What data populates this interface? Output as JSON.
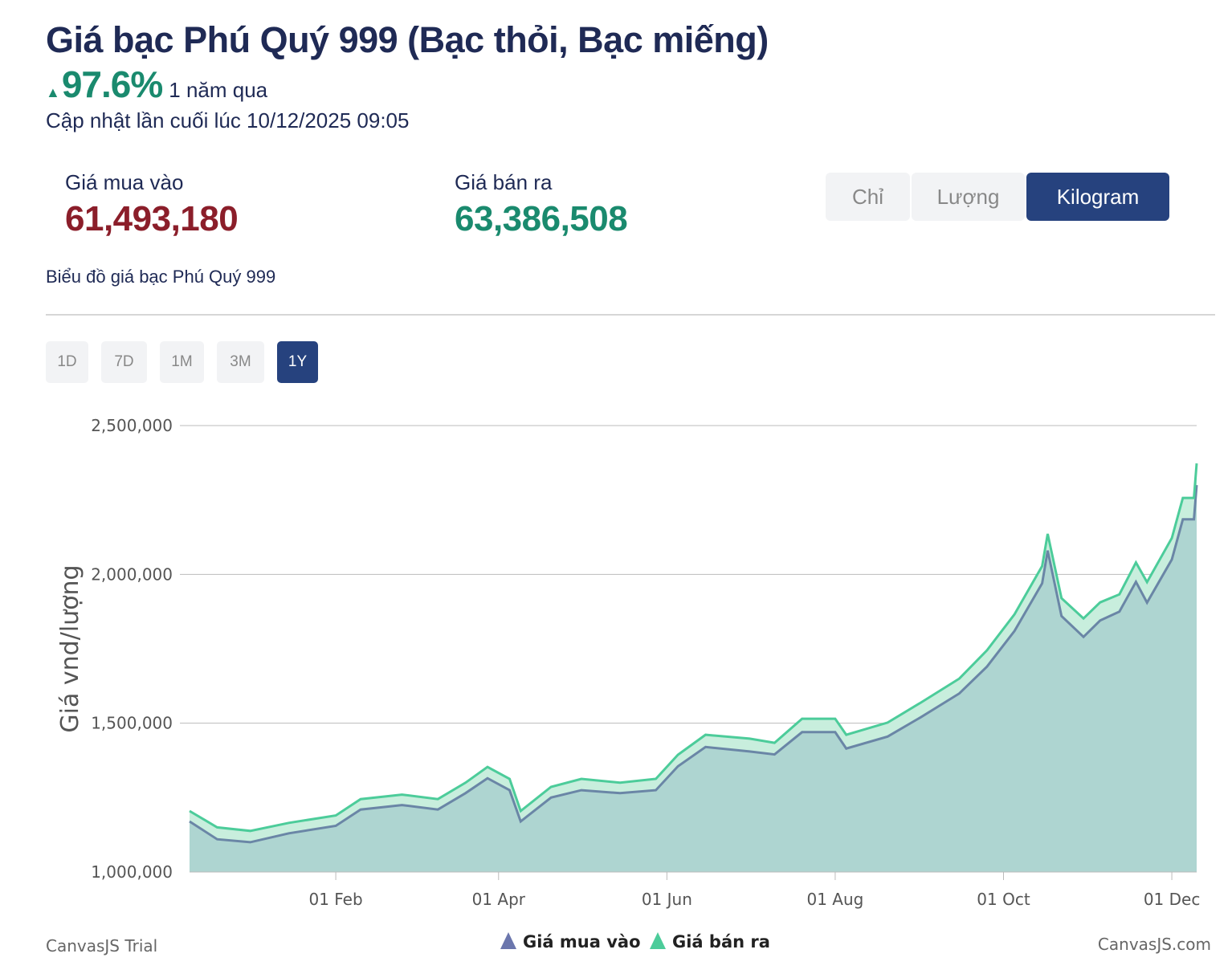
{
  "header": {
    "title": "Giá bạc Phú Quý 999 (Bạc thỏi, Bạc miếng)",
    "change_pct": "97.6%",
    "change_period": "1 năm qua",
    "updated": "Cập nhật lần cuối lúc 10/12/2025 09:05"
  },
  "prices": {
    "buy_label": "Giá mua vào",
    "buy_value": "61,493,180",
    "sell_label": "Giá bán ra",
    "sell_value": "63,386,508"
  },
  "units": [
    {
      "label": "Chỉ",
      "active": false
    },
    {
      "label": "Lượng",
      "active": false
    },
    {
      "label": "Kilogram",
      "active": true
    }
  ],
  "chart_subtitle": "Biểu đồ giá bạc Phú Quý 999",
  "ranges": [
    {
      "label": "1D"
    },
    {
      "label": "7D"
    },
    {
      "label": "1M"
    },
    {
      "label": "3M"
    },
    {
      "label": "1Y",
      "active": true
    }
  ],
  "colors": {
    "buy": "#6b76ad",
    "sell": "#4ccc9a",
    "accent": "#26427e",
    "up": "#1a8a6e",
    "buy_value": "#8b1e2a"
  },
  "footer": {
    "left": "CanvasJS Trial",
    "right": "CanvasJS.com"
  },
  "chart_data": {
    "type": "area",
    "ylabel": "Giá vnd/lượng",
    "ylim": [
      1000000,
      2500000
    ],
    "yticks": [
      "1,000,000",
      "1,500,000",
      "2,000,000",
      "2,500,000"
    ],
    "yticks_values": [
      1000000,
      1500000,
      2000000,
      2500000
    ],
    "xlim": [
      "2024-12-10",
      "2025-12-10"
    ],
    "xticks": [
      {
        "date": "2025-02-01",
        "label": "01 Feb"
      },
      {
        "date": "2025-04-01",
        "label": "01 Apr"
      },
      {
        "date": "2025-06-01",
        "label": "01 Jun"
      },
      {
        "date": "2025-08-01",
        "label": "01 Aug"
      },
      {
        "date": "2025-10-01",
        "label": "01 Oct"
      },
      {
        "date": "2025-12-01",
        "label": "01 Dec"
      }
    ],
    "grid": true,
    "legend": "bottom-center",
    "x": [
      "2024-12-10",
      "2024-12-20",
      "2025-01-01",
      "2025-01-15",
      "2025-02-01",
      "2025-02-10",
      "2025-02-25",
      "2025-03-10",
      "2025-03-20",
      "2025-03-28",
      "2025-04-05",
      "2025-04-09",
      "2025-04-20",
      "2025-05-01",
      "2025-05-15",
      "2025-05-28",
      "2025-06-05",
      "2025-06-15",
      "2025-07-01",
      "2025-07-10",
      "2025-07-20",
      "2025-08-01",
      "2025-08-05",
      "2025-08-20",
      "2025-09-01",
      "2025-09-15",
      "2025-09-25",
      "2025-10-05",
      "2025-10-15",
      "2025-10-17",
      "2025-10-22",
      "2025-10-30",
      "2025-11-05",
      "2025-11-12",
      "2025-11-18",
      "2025-11-22",
      "2025-12-01",
      "2025-12-05",
      "2025-12-09",
      "2025-12-10"
    ],
    "series": [
      {
        "name": "Giá mua vào",
        "values": [
          1170000,
          1110000,
          1100000,
          1130000,
          1155000,
          1210000,
          1225000,
          1210000,
          1265000,
          1315000,
          1275000,
          1170000,
          1250000,
          1275000,
          1265000,
          1275000,
          1355000,
          1420000,
          1405000,
          1395000,
          1470000,
          1470000,
          1415000,
          1455000,
          1520000,
          1600000,
          1690000,
          1810000,
          1970000,
          2080000,
          1860000,
          1790000,
          1845000,
          1875000,
          1975000,
          1905000,
          2050000,
          2185000,
          2185000,
          2300000
        ]
      },
      {
        "name": "Giá bán ra",
        "values": [
          1205000,
          1150000,
          1138000,
          1165000,
          1190000,
          1245000,
          1260000,
          1245000,
          1300000,
          1353000,
          1313000,
          1205000,
          1286000,
          1313000,
          1300000,
          1313000,
          1394000,
          1461000,
          1448000,
          1434000,
          1515000,
          1515000,
          1461000,
          1502000,
          1569000,
          1650000,
          1745000,
          1866000,
          2028000,
          2136000,
          1920000,
          1852000,
          1906000,
          1933000,
          2040000,
          1974000,
          2122000,
          2257000,
          2257000,
          2373000
        ]
      }
    ]
  }
}
